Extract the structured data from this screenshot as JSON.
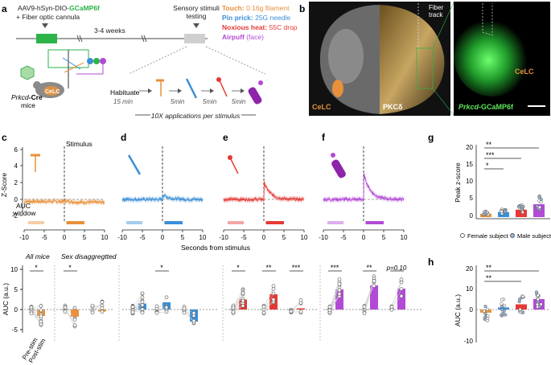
{
  "labels": {
    "a": "a",
    "b": "b",
    "c": "c",
    "d": "d",
    "e": "e",
    "f": "f",
    "g": "g",
    "h": "h"
  },
  "panel_a": {
    "virus": "AAV9-hSyn-DIO-",
    "virus_reporter": "GCaMP6f",
    "cannula": "+ Fiber optic cannula",
    "weeks": "3-4 weeks",
    "testing": "Sensory stimuli testing",
    "mouse_line": "Prkcd",
    "mouse_line_suffix": "-Cre",
    "mice_word": "mice",
    "region": "CeLC",
    "habituate": "Habituate",
    "habituate_time": "15 min",
    "interval": "5min",
    "repeat_note": "10X applications per stimulus",
    "stimuli": [
      {
        "name": "Touch:",
        "detail": " 0.16g filament",
        "color": "#e8903a"
      },
      {
        "name": "Pin prick:",
        "detail": " 25G needle",
        "color": "#3a8fd8"
      },
      {
        "name": "Noxious heat:",
        "detail": " 55C drop",
        "color": "#e53935"
      },
      {
        "name": "Airpuff",
        "detail": " (face)",
        "color": "#b24ad6"
      }
    ]
  },
  "panel_b": {
    "left_label": "CeLC",
    "middle_label": "PKCδ",
    "fiber_label": "Fiber track",
    "right_gene": "Prkcd",
    "right_reporter": "-GCaMP6f",
    "right_region": "CeLC"
  },
  "traces": {
    "ylabel": "Z-Score",
    "xlabel": "Seconds from stimulus",
    "stimulus_label": "Stimulus",
    "auc_label": "AUC window",
    "yticks": [
      "6",
      "4",
      "2",
      "0",
      "-2"
    ],
    "xticks": [
      "-10",
      "-5",
      "0",
      "5",
      "10"
    ]
  },
  "auc": {
    "ylabel": "AUC (a.u.)",
    "yticks": [
      "10",
      "5",
      "0",
      "-5"
    ],
    "all_mice": "All mice",
    "sex_disagg": "Sex disaggregtted",
    "pre_stim": "Pre-stim",
    "post_stim": "Post-stim",
    "sig": {
      "c_all": "*",
      "c_sex": "*",
      "d_sex": "*",
      "e_all": "*",
      "e_f": "**",
      "e_m": "***",
      "f_all": "***",
      "f_f": "**",
      "f_m": "p=0.10"
    }
  },
  "panel_g": {
    "ylabel": "Peak z-score",
    "yticks": [
      "20",
      "15",
      "10",
      "5",
      "0"
    ],
    "sig": [
      "**",
      "***",
      "*"
    ],
    "legend_female": "Female subject",
    "legend_male": "Male subject"
  },
  "panel_h": {
    "ylabel": "AUC (a.u.)",
    "yticks": [
      "20",
      "10",
      "0",
      "-10"
    ],
    "sig": [
      "**",
      "**"
    ]
  },
  "colors": {
    "touch": "#e8903a",
    "pinprick": "#3a8fd8",
    "heat": "#e53935",
    "airpuff": "#b24ad6",
    "green": "#2db34a",
    "grey": "#bdbdbd"
  }
}
